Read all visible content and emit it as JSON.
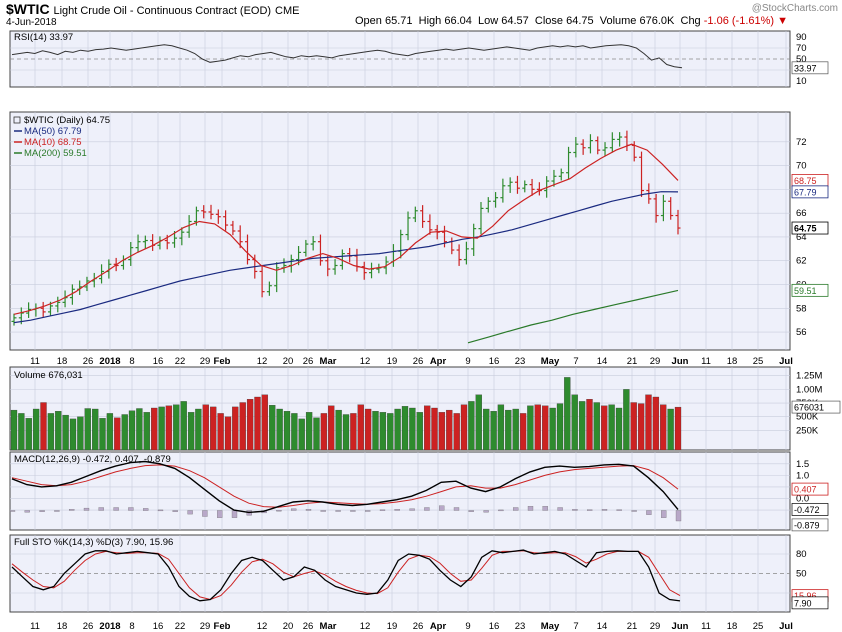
{
  "header": {
    "symbol": "$WTIC",
    "description": "Light Crude Oil - Continuous Contract (EOD)",
    "exchange": "CME",
    "date": "4-Jun-2018",
    "watermark": "@StockCharts.com",
    "open_label": "Open",
    "open": "65.71",
    "high_label": "High",
    "high": "66.04",
    "low_label": "Low",
    "low": "64.57",
    "close_label": "Close",
    "close": "64.75",
    "volume_label": "Volume",
    "volume": "676.0K",
    "chg_label": "Chg",
    "chg": "-1.06 (-1.61%)"
  },
  "colors": {
    "up": "#2e8b2e",
    "down": "#cc2222",
    "ma50": "#1a2a80",
    "ma10": "#cc2222",
    "ma200": "#2a7a2a",
    "panel_bg": "#eef0fa",
    "grid": "#c8ccdc"
  },
  "chart_data": [
    {
      "type": "line",
      "panel": "rsi",
      "label": "RSI(14) 33.97",
      "current": "33.97",
      "ylim": [
        10,
        90
      ],
      "ticks": [
        10,
        30,
        50,
        70,
        90
      ],
      "series": [
        {
          "name": "RSI(14)",
          "values": [
            58,
            60,
            62,
            60,
            65,
            62,
            58,
            64,
            62,
            66,
            64,
            67,
            68,
            70,
            68,
            66,
            68,
            70,
            72,
            74,
            76,
            74,
            70,
            66,
            60,
            50,
            44,
            46,
            48,
            52,
            56,
            54,
            58,
            60,
            62,
            58,
            54,
            52,
            56,
            54,
            56,
            54,
            52,
            56,
            58,
            60,
            62,
            64,
            66,
            64,
            60,
            58,
            56,
            60,
            62,
            64,
            66,
            68,
            66,
            68,
            70,
            68,
            66,
            68,
            70,
            72,
            70,
            68,
            66,
            70,
            72,
            74,
            72,
            74,
            72,
            74,
            70,
            72,
            74,
            75,
            76,
            74,
            70,
            60,
            48,
            52,
            40,
            36,
            33.97
          ]
        }
      ]
    },
    {
      "type": "candlestick",
      "panel": "price",
      "label": "$WTIC (Daily) 64.75",
      "ylim": [
        55,
        74
      ],
      "ticks": [
        56,
        58,
        60,
        62,
        64,
        66,
        68,
        70,
        72
      ],
      "x_ticks": [
        "11",
        "18",
        "26",
        "2018",
        "8",
        "16",
        "22",
        "29",
        "Feb",
        "12",
        "20",
        "26",
        "Mar",
        "12",
        "19",
        "26",
        "Apr",
        "9",
        "16",
        "23",
        "May",
        "7",
        "14",
        "21",
        "29",
        "Jun",
        "11",
        "18",
        "25",
        "Jul"
      ],
      "closes": [
        57.2,
        57.6,
        57.9,
        58.0,
        57.7,
        58.2,
        58.5,
        58.9,
        59.6,
        59.8,
        60.3,
        60.5,
        61.1,
        61.7,
        61.6,
        62.1,
        63.1,
        63.6,
        63.7,
        63.3,
        63.7,
        63.5,
        63.9,
        64.4,
        65.3,
        66.2,
        66.1,
        65.9,
        65.7,
        65.0,
        64.5,
        63.6,
        62.1,
        61.1,
        59.4,
        59.9,
        61.4,
        61.6,
        62.1,
        62.7,
        63.4,
        63.6,
        62.0,
        61.3,
        61.6,
        62.6,
        62.4,
        61.5,
        61.0,
        61.3,
        61.4,
        61.9,
        62.8,
        64.2,
        65.6,
        66.2,
        65.3,
        64.6,
        64.4,
        63.6,
        62.9,
        62.1,
        63.0,
        64.7,
        66.4,
        67.0,
        67.3,
        68.3,
        68.6,
        68.1,
        68.4,
        68.0,
        67.9,
        68.7,
        69.1,
        69.4,
        71.1,
        71.8,
        71.5,
        72.1,
        71.3,
        71.5,
        72.2,
        72.4,
        71.7,
        70.7,
        67.9,
        67.2,
        65.8,
        67.0,
        65.8,
        64.75
      ],
      "series": [
        {
          "name": "MA(50)",
          "label": "MA(50) 67.79",
          "last": "67.79",
          "values": [
            56.8,
            57.0,
            57.3,
            57.6,
            57.9,
            58.3,
            58.7,
            59.1,
            59.5,
            59.9,
            60.3,
            60.6,
            60.9,
            61.2,
            61.4,
            61.6,
            61.8,
            62.0,
            62.2,
            62.3,
            62.4,
            62.5,
            62.6,
            62.8,
            63.0,
            63.2,
            63.5,
            63.8,
            64.0,
            64.3,
            64.6,
            65.0,
            65.4,
            65.8,
            66.2,
            66.6,
            67.0,
            67.3,
            67.6,
            67.8,
            67.79
          ]
        },
        {
          "name": "MA(10)",
          "label": "MA(10) 68.75",
          "last": "68.75",
          "values": [
            57.5,
            57.8,
            58.2,
            58.7,
            59.4,
            60.3,
            61.1,
            62.0,
            62.7,
            63.3,
            64.0,
            64.8,
            65.3,
            65.1,
            64.2,
            62.8,
            61.6,
            61.2,
            61.6,
            62.2,
            62.6,
            62.2,
            61.6,
            61.3,
            61.5,
            62.3,
            63.5,
            64.4,
            64.5,
            64.0,
            63.9,
            64.9,
            66.2,
            67.1,
            67.9,
            68.4,
            68.9,
            69.8,
            70.6,
            71.3,
            71.8,
            71.3,
            70.1,
            68.75
          ]
        },
        {
          "name": "MA(200)",
          "label": "MA(200) 59.51",
          "last": "59.51",
          "values": [
            55.1,
            55.6,
            56.1,
            56.6,
            57.0,
            57.5,
            57.9,
            58.3,
            58.7,
            59.1,
            59.51
          ]
        }
      ]
    },
    {
      "type": "bar",
      "panel": "volume",
      "label": "Volume 676,031",
      "current": "676031",
      "ylim": [
        0,
        1300000
      ],
      "ticks": [
        "250K",
        "500K",
        "750K",
        "1.00M",
        "1.25M"
      ],
      "values": [
        620000,
        560000,
        470000,
        640000,
        760000,
        560000,
        600000,
        530000,
        460000,
        500000,
        650000,
        640000,
        470000,
        560000,
        480000,
        540000,
        610000,
        650000,
        580000,
        660000,
        680000,
        700000,
        720000,
        780000,
        580000,
        640000,
        720000,
        680000,
        560000,
        500000,
        680000,
        760000,
        820000,
        860000,
        900000,
        710000,
        640000,
        600000,
        560000,
        460000,
        580000,
        480000,
        560000,
        700000,
        620000,
        540000,
        560000,
        720000,
        640000,
        600000,
        580000,
        560000,
        640000,
        690000,
        660000,
        580000,
        700000,
        660000,
        580000,
        620000,
        560000,
        720000,
        780000,
        900000,
        640000,
        600000,
        720000,
        620000,
        640000,
        560000,
        700000,
        720000,
        700000,
        660000,
        740000,
        1220000,
        900000,
        780000,
        820000,
        760000,
        700000,
        720000,
        660000,
        1000000,
        760000,
        740000,
        900000,
        860000,
        720000,
        640000,
        676031
      ]
    },
    {
      "type": "line",
      "panel": "macd",
      "label": "MACD(12,26,9) -0.472, 0.407, -0.879",
      "macd": "-0.472",
      "signal": "0.407",
      "histogram": "-0.879",
      "ylim": [
        -1.1,
        1.75
      ],
      "ticks": [
        "-0.5",
        "0.0",
        "0.5",
        "1.0",
        "1.5"
      ],
      "series": [
        {
          "name": "MACD",
          "values": [
            0.85,
            0.6,
            0.5,
            0.55,
            0.7,
            0.95,
            1.2,
            1.4,
            1.55,
            1.6,
            1.5,
            1.3,
            0.9,
            0.4,
            -0.1,
            -0.5,
            -0.6,
            -0.55,
            -0.35,
            -0.15,
            -0.1,
            -0.15,
            -0.25,
            -0.3,
            -0.25,
            -0.15,
            -0.05,
            0.1,
            0.35,
            0.7,
            0.75,
            0.45,
            0.3,
            0.5,
            0.85,
            1.15,
            1.35,
            1.4,
            1.35,
            1.38,
            1.45,
            1.48,
            1.4,
            0.9,
            0.3,
            -0.472
          ]
        },
        {
          "name": "Signal",
          "values": [
            0.9,
            0.75,
            0.6,
            0.55,
            0.6,
            0.75,
            0.95,
            1.15,
            1.3,
            1.42,
            1.45,
            1.4,
            1.2,
            0.9,
            0.5,
            0.1,
            -0.2,
            -0.35,
            -0.38,
            -0.3,
            -0.2,
            -0.15,
            -0.18,
            -0.22,
            -0.25,
            -0.22,
            -0.15,
            -0.05,
            0.1,
            0.3,
            0.5,
            0.55,
            0.45,
            0.45,
            0.6,
            0.8,
            1.0,
            1.15,
            1.25,
            1.3,
            1.35,
            1.4,
            1.42,
            1.25,
            0.9,
            0.407
          ]
        }
      ]
    },
    {
      "type": "line",
      "panel": "sto",
      "label": "Full STO %K(14,3) %D(3) 7.90, 15.96",
      "k": "7.90",
      "d": "15.96",
      "ylim": [
        0,
        100
      ],
      "ticks": [
        20,
        50,
        80
      ],
      "series": [
        {
          "name": "%K",
          "values": [
            60,
            45,
            30,
            25,
            30,
            50,
            65,
            80,
            85,
            85,
            80,
            82,
            84,
            82,
            80,
            60,
            30,
            15,
            8,
            10,
            25,
            50,
            70,
            75,
            70,
            55,
            40,
            45,
            60,
            55,
            40,
            30,
            25,
            20,
            18,
            20,
            40,
            70,
            80,
            78,
            72,
            55,
            40,
            30,
            45,
            75,
            85,
            82,
            84,
            86,
            80,
            82,
            84,
            80,
            70,
            60,
            82,
            84,
            85,
            84,
            84,
            60,
            20,
            10,
            7.9
          ]
        },
        {
          "name": "%D",
          "values": [
            65,
            52,
            40,
            30,
            28,
            38,
            55,
            70,
            80,
            84,
            82,
            81,
            82,
            82,
            81,
            72,
            50,
            28,
            14,
            10,
            16,
            32,
            52,
            68,
            72,
            65,
            52,
            45,
            50,
            54,
            48,
            38,
            30,
            24,
            20,
            19,
            28,
            52,
            72,
            78,
            76,
            66,
            50,
            38,
            40,
            58,
            78,
            84,
            84,
            85,
            82,
            81,
            82,
            82,
            76,
            66,
            72,
            80,
            84,
            84,
            84,
            75,
            50,
            25,
            15.96
          ]
        }
      ]
    }
  ]
}
